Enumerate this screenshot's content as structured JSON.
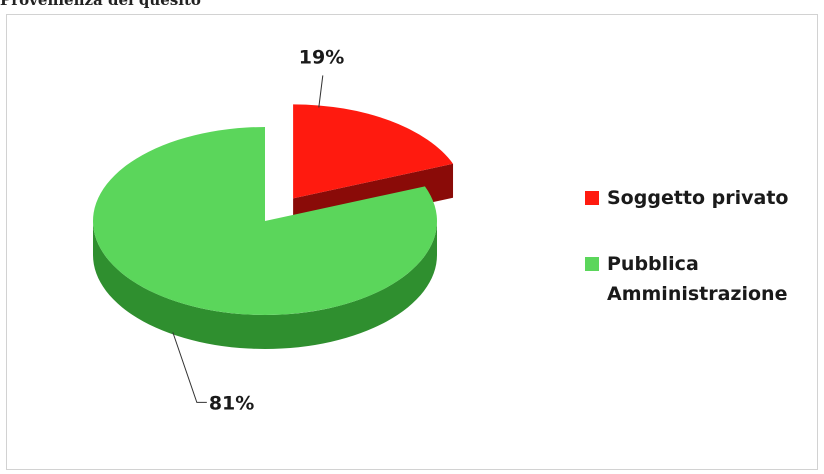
{
  "page": {
    "title": "Provenienza del quesito"
  },
  "chart_data": {
    "type": "pie",
    "title": "",
    "slices": [
      {
        "name": "Soggetto privato",
        "value": 19,
        "label": "19%",
        "color": "#ff1a0f",
        "side_color": "#8a0b08",
        "exploded": true
      },
      {
        "name": "Pubblica Amministrazione",
        "value": 81,
        "label": "81%",
        "color": "#5bd65b",
        "side_color": "#2f8f2f",
        "exploded": false
      }
    ],
    "legend": {
      "position": "right",
      "entries": [
        "Soggetto privato",
        "Pubblica Amministrazione"
      ]
    }
  }
}
